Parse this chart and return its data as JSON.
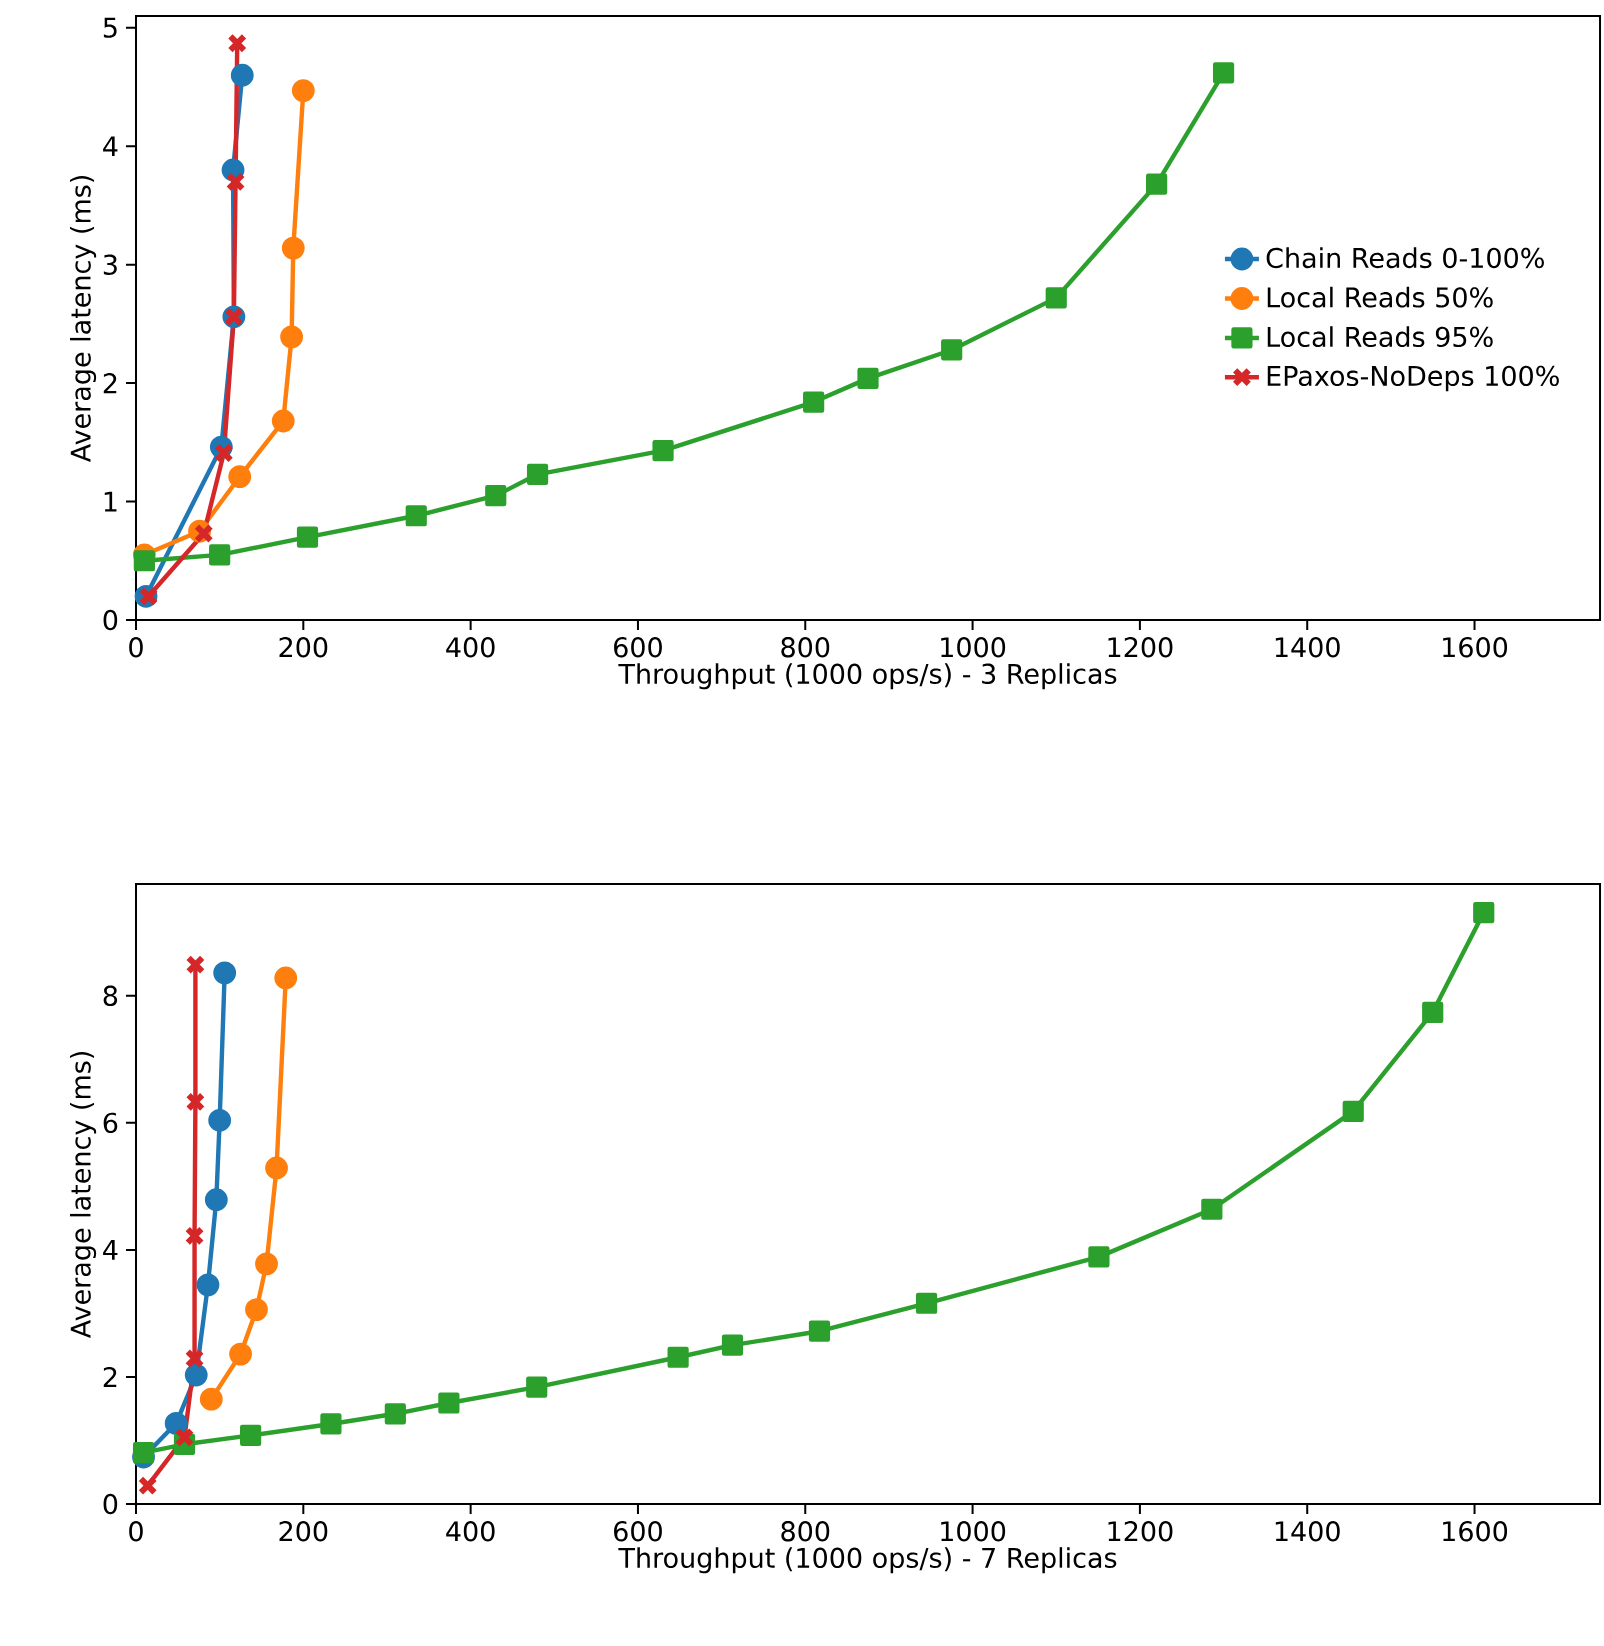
{
  "chart_data": [
    {
      "type": "line",
      "xlabel": "Throughput (1000 ops/s) - 3 Replicas",
      "ylabel": "Average latency (ms)",
      "xlim": [
        0,
        1750
      ],
      "ylim": [
        0,
        5.1
      ],
      "xticks": [
        0,
        200,
        400,
        600,
        800,
        1000,
        1200,
        1400,
        1600
      ],
      "yticks": [
        0,
        1,
        2,
        3,
        4,
        5
      ],
      "legend": "right",
      "grid": false,
      "line_style": "solid",
      "series": [
        {
          "name": "Chain Reads 0-100%",
          "color": "#1f77b4",
          "marker": "circle",
          "x": [
            12,
            102,
            117,
            116,
            127
          ],
          "values": [
            0.2,
            1.46,
            2.56,
            3.8,
            4.6
          ]
        },
        {
          "name": "Local Reads 50%",
          "color": "#ff7f0e",
          "marker": "circle",
          "x": [
            10,
            76,
            124,
            176,
            186,
            188,
            200
          ],
          "values": [
            0.55,
            0.75,
            1.21,
            1.68,
            2.39,
            3.14,
            4.47
          ]
        },
        {
          "name": "Local Reads 95%",
          "color": "#2ca02c",
          "marker": "square",
          "x": [
            10,
            100,
            205,
            335,
            430,
            480,
            630,
            810,
            875,
            975,
            1100,
            1220,
            1300
          ],
          "values": [
            0.5,
            0.55,
            0.7,
            0.88,
            1.05,
            1.23,
            1.43,
            1.84,
            2.04,
            2.28,
            2.72,
            3.68,
            4.62
          ]
        },
        {
          "name": "EPaxos-NoDeps 100%",
          "color": "#d62728",
          "marker": "cross",
          "x": [
            15,
            81,
            105,
            117,
            119,
            121
          ],
          "values": [
            0.2,
            0.73,
            1.41,
            2.56,
            3.7,
            4.87
          ]
        }
      ]
    },
    {
      "type": "line",
      "xlabel": "Throughput (1000 ops/s) - 7 Replicas",
      "ylabel": "Average latency (ms)",
      "xlim": [
        0,
        1750
      ],
      "ylim": [
        0,
        9.76
      ],
      "xticks": [
        0,
        200,
        400,
        600,
        800,
        1000,
        1200,
        1400,
        1600
      ],
      "yticks": [
        0,
        2,
        4,
        6,
        8
      ],
      "grid": false,
      "line_style": "solid",
      "series": [
        {
          "color": "#1f77b4",
          "marker": "circle",
          "x": [
            9,
            48,
            72,
            86,
            96,
            100,
            106
          ],
          "values": [
            0.74,
            1.27,
            2.03,
            3.45,
            4.79,
            6.04,
            8.36
          ]
        },
        {
          "color": "#ff7f0e",
          "marker": "circle",
          "x": [
            90,
            125,
            144,
            156,
            168,
            179
          ],
          "values": [
            1.65,
            2.36,
            3.06,
            3.78,
            5.29,
            8.28
          ]
        },
        {
          "color": "#2ca02c",
          "marker": "square",
          "x": [
            9,
            58,
            137,
            233,
            310,
            374,
            479,
            648,
            713,
            817,
            945,
            1151,
            1286,
            1455,
            1550,
            1611
          ],
          "values": [
            0.81,
            0.94,
            1.08,
            1.26,
            1.42,
            1.59,
            1.84,
            2.31,
            2.5,
            2.72,
            3.16,
            3.89,
            4.64,
            6.18,
            7.74,
            9.31
          ]
        },
        {
          "color": "#d62728",
          "marker": "cross",
          "x": [
            14,
            58,
            70,
            70,
            71,
            71
          ],
          "values": [
            0.29,
            1.05,
            2.29,
            4.22,
            6.33,
            8.49
          ]
        }
      ]
    }
  ]
}
